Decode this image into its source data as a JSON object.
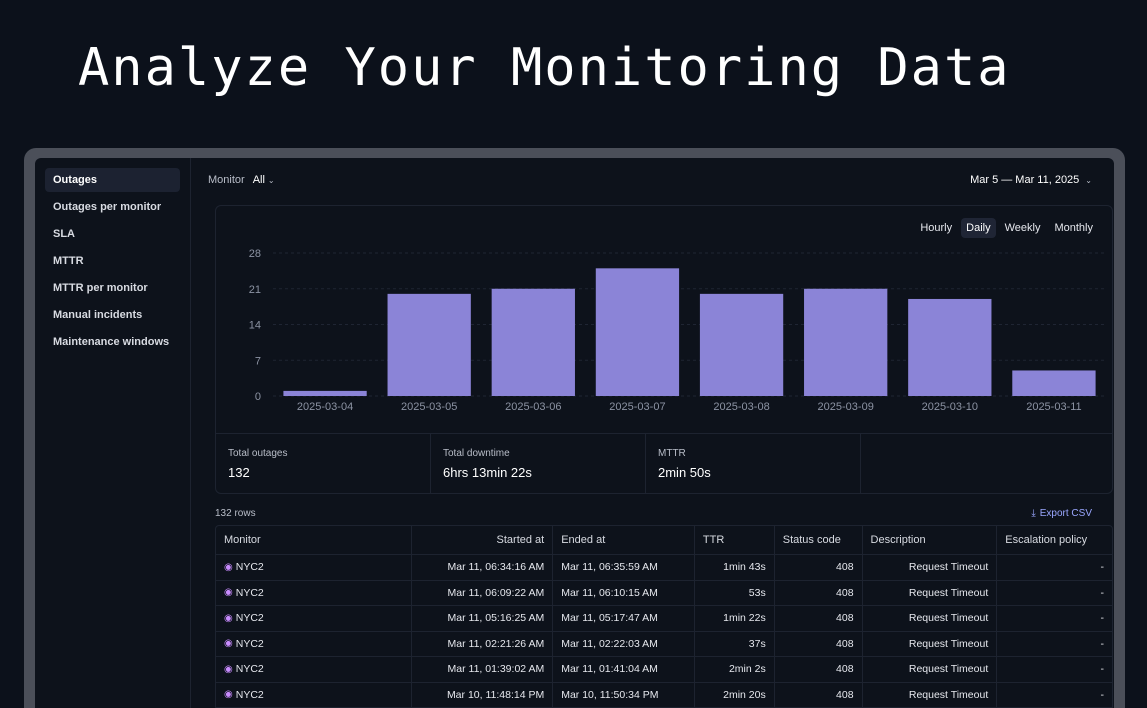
{
  "hero": {
    "title": "Analyze Your Monitoring Data"
  },
  "sidebar": {
    "items": [
      {
        "label": "Outages",
        "active": true
      },
      {
        "label": "Outages per monitor"
      },
      {
        "label": "SLA"
      },
      {
        "label": "MTTR"
      },
      {
        "label": "MTTR per monitor"
      },
      {
        "label": "Manual incidents"
      },
      {
        "label": "Maintenance windows"
      }
    ]
  },
  "topbar": {
    "monitor_label": "Monitor",
    "monitor_value": "All",
    "date_range": "Mar 5 — Mar 11, 2025"
  },
  "granularity": {
    "options": [
      "Hourly",
      "Daily",
      "Weekly",
      "Monthly"
    ],
    "active": "Daily"
  },
  "chart_data": {
    "type": "bar",
    "categories": [
      "2025-03-04",
      "2025-03-05",
      "2025-03-06",
      "2025-03-07",
      "2025-03-08",
      "2025-03-09",
      "2025-03-10",
      "2025-03-11"
    ],
    "values": [
      1,
      20,
      21,
      25,
      20,
      21,
      19,
      5
    ],
    "yticks": [
      "0",
      "7",
      "14",
      "21",
      "28"
    ],
    "ylim": [
      0,
      28
    ],
    "bar_color": "#8b84d7",
    "grid": true
  },
  "stats": [
    {
      "label": "Total outages",
      "value": "132"
    },
    {
      "label": "Total downtime",
      "value": "6hrs 13min 22s"
    },
    {
      "label": "MTTR",
      "value": "2min 50s"
    }
  ],
  "table": {
    "row_count": "132 rows",
    "export_label": "Export CSV",
    "columns": [
      "Monitor",
      "Started at",
      "Ended at",
      "TTR",
      "Status code",
      "Description",
      "Escalation policy"
    ],
    "rows": [
      [
        "NYC2",
        "Mar 11, 06:34:16 AM",
        "Mar 11, 06:35:59 AM",
        "1min 43s",
        "408",
        "Request Timeout",
        "-"
      ],
      [
        "NYC2",
        "Mar 11, 06:09:22 AM",
        "Mar 11, 06:10:15 AM",
        "53s",
        "408",
        "Request Timeout",
        "-"
      ],
      [
        "NYC2",
        "Mar 11, 05:16:25 AM",
        "Mar 11, 05:17:47 AM",
        "1min 22s",
        "408",
        "Request Timeout",
        "-"
      ],
      [
        "NYC2",
        "Mar 11, 02:21:26 AM",
        "Mar 11, 02:22:03 AM",
        "37s",
        "408",
        "Request Timeout",
        "-"
      ],
      [
        "NYC2",
        "Mar 11, 01:39:02 AM",
        "Mar 11, 01:41:04 AM",
        "2min 2s",
        "408",
        "Request Timeout",
        "-"
      ],
      [
        "NYC2",
        "Mar 10, 11:48:14 PM",
        "Mar 10, 11:50:34 PM",
        "2min 20s",
        "408",
        "Request Timeout",
        "-"
      ]
    ]
  }
}
